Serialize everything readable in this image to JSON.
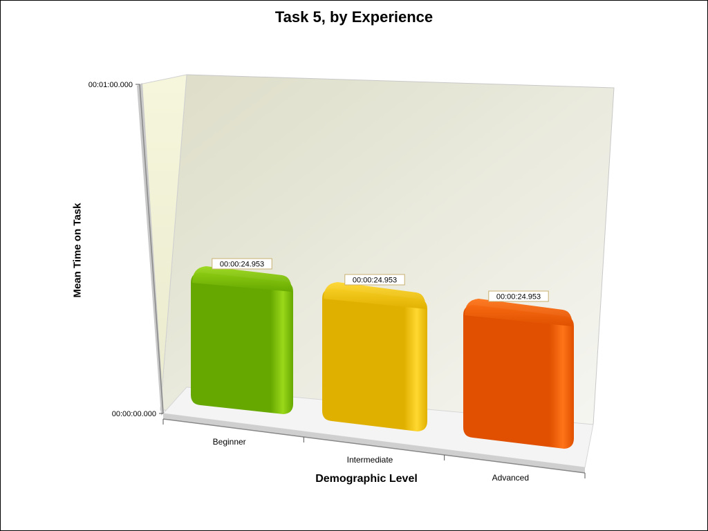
{
  "chart_data": {
    "type": "bar",
    "title": "Task 5, by Experience",
    "xlabel": "Demographic Level",
    "ylabel": "Mean Time on Task",
    "categories": [
      "Beginner",
      "Intermediate",
      "Advanced"
    ],
    "values": [
      24.953,
      24.953,
      24.953
    ],
    "value_labels": [
      "00:00:24.953",
      "00:00:24.953",
      "00:00:24.953"
    ],
    "y_ticks": [
      {
        "value": 0,
        "label": "00:00:00.000"
      },
      {
        "value": 60,
        "label": "00:01:00.000"
      }
    ],
    "ylim": [
      0,
      60
    ],
    "grid": false,
    "legend": "none",
    "bar_colors": [
      "#66a800",
      "#e0b000",
      "#e05000"
    ],
    "highlight_colors": [
      "#9ad81a",
      "#ffd830",
      "#ff7418"
    ]
  }
}
